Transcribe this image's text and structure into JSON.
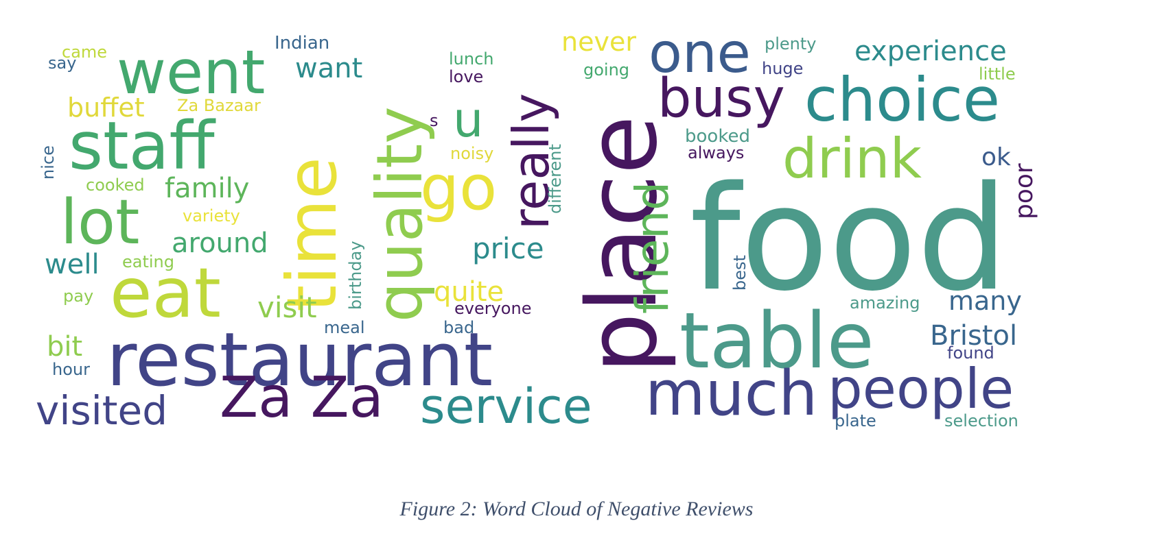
{
  "figure": {
    "caption": "Figure 2:  Word Cloud of Negative Reviews"
  },
  "palette": {
    "dark_purple": "#46175f",
    "indigo": "#414487",
    "blue": "#3b5b8c",
    "slate": "#39668d",
    "teal": "#2c8b8c",
    "teal_green": "#4c9a8a",
    "green": "#43a86e",
    "mid_green": "#5db55a",
    "light_green": "#8fcc4f",
    "lime": "#bfd83b",
    "yellow": "#e9e23a"
  },
  "words": [
    {
      "text": "food",
      "color": "#4c9a8a"
    },
    {
      "text": "place",
      "color": "#46175f"
    },
    {
      "text": "restaurant",
      "color": "#414487"
    },
    {
      "text": "table",
      "color": "#4c9a8a"
    },
    {
      "text": "time",
      "color": "#e9e23a"
    },
    {
      "text": "quality",
      "color": "#8fcc4f"
    },
    {
      "text": "staff",
      "color": "#43a86e"
    },
    {
      "text": "eat",
      "color": "#bfd83b"
    },
    {
      "text": "choice",
      "color": "#2c8b8c"
    },
    {
      "text": "much",
      "color": "#414487"
    },
    {
      "text": "service",
      "color": "#2c8b8c"
    },
    {
      "text": "Za Za",
      "color": "#46175f"
    },
    {
      "text": "went",
      "color": "#43a86e"
    },
    {
      "text": "people",
      "color": "#414487"
    },
    {
      "text": "lot",
      "color": "#5db55a"
    },
    {
      "text": "go",
      "color": "#e9e23a"
    },
    {
      "text": "drink",
      "color": "#8fcc4f"
    },
    {
      "text": "busy",
      "color": "#46175f"
    },
    {
      "text": "one",
      "color": "#3b5b8c"
    },
    {
      "text": "really",
      "color": "#46175f"
    },
    {
      "text": "friend",
      "color": "#5db55a"
    },
    {
      "text": "visited",
      "color": "#414487"
    },
    {
      "text": "u",
      "color": "#43a86e"
    },
    {
      "text": "experience",
      "color": "#2c8b8c"
    },
    {
      "text": "family",
      "color": "#5db55a"
    },
    {
      "text": "around",
      "color": "#43a86e"
    },
    {
      "text": "price",
      "color": "#2c8b8c"
    },
    {
      "text": "want",
      "color": "#2c8b8c"
    },
    {
      "text": "buffet",
      "color": "#e0d83a"
    },
    {
      "text": "visit",
      "color": "#8fcc4f"
    },
    {
      "text": "quite",
      "color": "#e9e23a"
    },
    {
      "text": "well",
      "color": "#2c8b8c"
    },
    {
      "text": "Bristol",
      "color": "#39668d"
    },
    {
      "text": "many",
      "color": "#39668d"
    },
    {
      "text": "bit",
      "color": "#8fcc4f"
    },
    {
      "text": "never",
      "color": "#e9e23a"
    },
    {
      "text": "ok",
      "color": "#3b5b8c"
    },
    {
      "text": "poor",
      "color": "#46175f"
    },
    {
      "text": "Indian",
      "color": "#39668d"
    },
    {
      "text": "came",
      "color": "#bfd83b"
    },
    {
      "text": "say",
      "color": "#39668d"
    },
    {
      "text": "Za Bazaar",
      "color": "#e0d83a"
    },
    {
      "text": "nice",
      "color": "#39668d"
    },
    {
      "text": "cooked",
      "color": "#8fcc4f"
    },
    {
      "text": "variety",
      "color": "#e9e23a"
    },
    {
      "text": "eating",
      "color": "#8fcc4f"
    },
    {
      "text": "pay",
      "color": "#8fcc4f"
    },
    {
      "text": "hour",
      "color": "#39668d"
    },
    {
      "text": "birthday",
      "color": "#4c9a8a"
    },
    {
      "text": "meal",
      "color": "#39668d"
    },
    {
      "text": "bad",
      "color": "#39668d"
    },
    {
      "text": "everyone",
      "color": "#46175f"
    },
    {
      "text": "lunch",
      "color": "#43a86e"
    },
    {
      "text": "love",
      "color": "#46175f"
    },
    {
      "text": "s",
      "color": "#46175f"
    },
    {
      "text": "noisy",
      "color": "#e0d83a"
    },
    {
      "text": "different",
      "color": "#4c9a8a"
    },
    {
      "text": "going",
      "color": "#43a86e"
    },
    {
      "text": "plenty",
      "color": "#4c9a8a"
    },
    {
      "text": "huge",
      "color": "#414487"
    },
    {
      "text": "little",
      "color": "#8fcc4f"
    },
    {
      "text": "booked",
      "color": "#4c9a8a"
    },
    {
      "text": "always",
      "color": "#46175f"
    },
    {
      "text": "best",
      "color": "#39668d"
    },
    {
      "text": "amazing",
      "color": "#4c9a8a"
    },
    {
      "text": "found",
      "color": "#414487"
    },
    {
      "text": "plate",
      "color": "#39668d"
    },
    {
      "text": "selection",
      "color": "#4c9a8a"
    }
  ]
}
